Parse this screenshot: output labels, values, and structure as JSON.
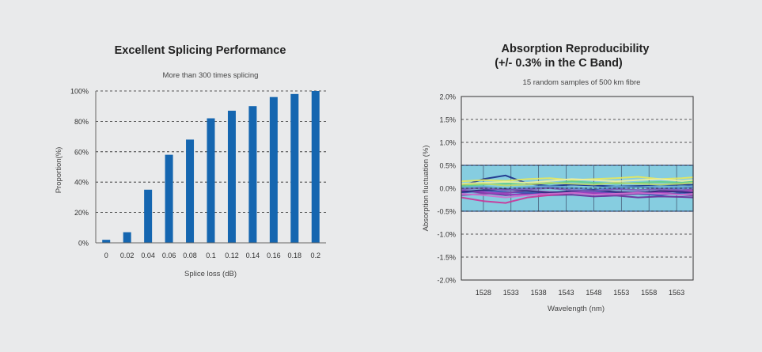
{
  "colors": {
    "background": "#e9eaeb",
    "bar": "#1566b0",
    "band_fill": "#86cde0",
    "band_edge": "#2f4e8a",
    "grid": "#222222",
    "text": "#333333",
    "title": "#222222"
  },
  "chart_data": [
    {
      "type": "bar",
      "title": "Excellent Splicing Performance",
      "subtitle": "More than 300 times splicing",
      "xlabel": "Splice loss (dB)",
      "ylabel": "Proportion(%)",
      "categories": [
        "0",
        "0.02",
        "0.04",
        "0.06",
        "0.08",
        "0.1",
        "0.12",
        "0.14",
        "0.16",
        "0.18",
        "0.2"
      ],
      "values": [
        2,
        7,
        35,
        58,
        68,
        82,
        87,
        90,
        96,
        98,
        100
      ],
      "ylim": [
        0,
        100
      ],
      "yticks": [
        0,
        20,
        40,
        60,
        80,
        100
      ],
      "ytick_labels": [
        "0%",
        "20%",
        "40%",
        "60%",
        "80%",
        "100%"
      ],
      "grid": "dashed horizontal",
      "legend": "none"
    },
    {
      "type": "line",
      "title_line1": "Absorption Reproducibility",
      "title_line2": "(+/- 0.3% in the C Band)",
      "subtitle": "15 random samples of 500 km fibre",
      "xlabel": "Wavelength (nm)",
      "ylabel": "Absorption fluctuation (%)",
      "xlim": [
        1524,
        1566
      ],
      "xticks": [
        1528,
        1533,
        1538,
        1543,
        1548,
        1553,
        1558,
        1563
      ],
      "xtick_labels": [
        "1528",
        "1533",
        "1538",
        "1543",
        "1548",
        "1553",
        "1558",
        "1563"
      ],
      "ylim": [
        -2.0,
        2.0
      ],
      "yticks": [
        2.0,
        1.5,
        1.0,
        0.5,
        0.0,
        -0.5,
        -1.0,
        -1.5,
        -2.0
      ],
      "ytick_labels": [
        "2.0%",
        "1.5%",
        "1.0%",
        "0.5%",
        "0.0%",
        "-0.5%",
        "-1.0%",
        "-1.5%",
        "-2.0%"
      ],
      "band": [
        -0.5,
        0.5
      ],
      "grid": "dashed horizontal",
      "legend": "none",
      "x": [
        1524,
        1528,
        1532,
        1536,
        1540,
        1544,
        1548,
        1552,
        1556,
        1560,
        1564,
        1566
      ],
      "series": [
        {
          "color": "#1a2f8a",
          "values": [
            0.05,
            0.2,
            0.28,
            0.1,
            0.05,
            0.08,
            0.06,
            0.04,
            0.05,
            0.06,
            0.08,
            0.07
          ]
        },
        {
          "color": "#6a2a9a",
          "values": [
            -0.05,
            -0.1,
            -0.15,
            -0.12,
            -0.15,
            -0.14,
            -0.18,
            -0.16,
            -0.2,
            -0.18,
            -0.19,
            -0.2
          ]
        },
        {
          "color": "#cc3399",
          "values": [
            -0.2,
            -0.28,
            -0.32,
            -0.2,
            -0.15,
            -0.1,
            -0.12,
            -0.08,
            -0.1,
            -0.06,
            -0.05,
            -0.04
          ]
        },
        {
          "color": "#e8e85a",
          "values": [
            0.15,
            0.18,
            0.16,
            0.2,
            0.22,
            0.18,
            0.2,
            0.22,
            0.25,
            0.2,
            0.22,
            0.24
          ]
        },
        {
          "color": "#5fcf8a",
          "values": [
            0.05,
            0.08,
            0.1,
            0.12,
            0.1,
            0.15,
            0.12,
            0.1,
            0.12,
            0.14,
            0.12,
            0.15
          ]
        },
        {
          "color": "#3a4fb0",
          "values": [
            -0.1,
            -0.05,
            -0.08,
            -0.1,
            -0.12,
            -0.1,
            -0.08,
            -0.1,
            -0.12,
            -0.15,
            -0.1,
            -0.12
          ]
        },
        {
          "color": "#8844aa",
          "values": [
            -0.15,
            -0.12,
            -0.1,
            -0.05,
            -0.08,
            -0.1,
            -0.12,
            -0.15,
            -0.12,
            -0.1,
            -0.14,
            -0.16
          ]
        },
        {
          "color": "#5577cc",
          "values": [
            0.0,
            0.02,
            -0.02,
            0.0,
            0.02,
            0.0,
            -0.02,
            0.0,
            0.02,
            0.0,
            0.0,
            0.02
          ]
        },
        {
          "color": "#f0f0a0",
          "values": [
            0.1,
            0.12,
            0.14,
            0.12,
            0.16,
            0.2,
            0.18,
            0.15,
            0.18,
            0.2,
            0.16,
            0.18
          ]
        },
        {
          "color": "#a040c0",
          "values": [
            -0.05,
            -0.08,
            -0.12,
            -0.15,
            -0.1,
            -0.08,
            -0.1,
            -0.12,
            -0.08,
            -0.1,
            -0.06,
            -0.08
          ]
        },
        {
          "color": "#66aacc",
          "values": [
            0.02,
            0.04,
            0.0,
            0.03,
            0.05,
            0.02,
            0.0,
            0.04,
            0.02,
            0.05,
            0.03,
            0.05
          ]
        },
        {
          "color": "#2a2a7a",
          "values": [
            -0.08,
            -0.04,
            -0.02,
            -0.06,
            -0.1,
            -0.06,
            -0.04,
            -0.08,
            -0.1,
            -0.06,
            -0.08,
            -0.1
          ]
        },
        {
          "color": "#d070d0",
          "values": [
            -0.12,
            -0.15,
            -0.2,
            -0.15,
            -0.12,
            -0.1,
            -0.14,
            -0.12,
            -0.1,
            -0.12,
            -0.14,
            -0.12
          ]
        },
        {
          "color": "#bcd86a",
          "values": [
            0.08,
            0.1,
            0.06,
            0.08,
            0.12,
            0.1,
            0.08,
            0.12,
            0.1,
            0.08,
            0.1,
            0.12
          ]
        },
        {
          "color": "#7a5ab8",
          "values": [
            -0.02,
            0.0,
            -0.04,
            -0.02,
            0.0,
            -0.04,
            -0.06,
            -0.02,
            -0.04,
            -0.02,
            -0.04,
            -0.02
          ]
        }
      ]
    }
  ]
}
